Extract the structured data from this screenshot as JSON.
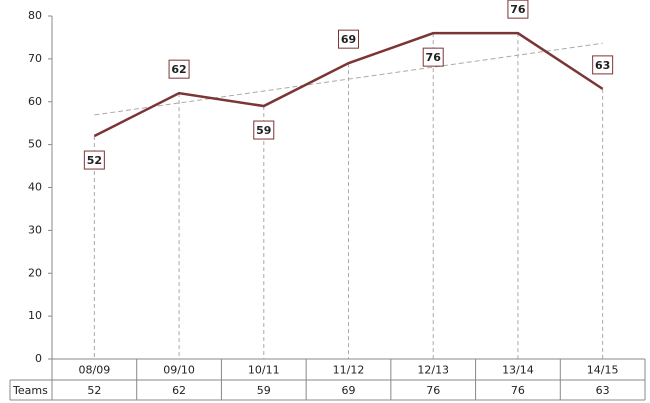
{
  "chart_data": {
    "type": "line",
    "categories": [
      "08/09",
      "09/10",
      "10/11",
      "11/12",
      "12/13",
      "13/14",
      "14/15"
    ],
    "series": [
      {
        "name": "Teams",
        "color": "#7b3535",
        "values": [
          52,
          62,
          59,
          69,
          76,
          76,
          63
        ]
      }
    ],
    "ylim": [
      0,
      80
    ],
    "yticks": [
      0,
      10,
      20,
      30,
      40,
      50,
      60,
      70,
      80
    ],
    "trendline": true,
    "data_table": true
  }
}
